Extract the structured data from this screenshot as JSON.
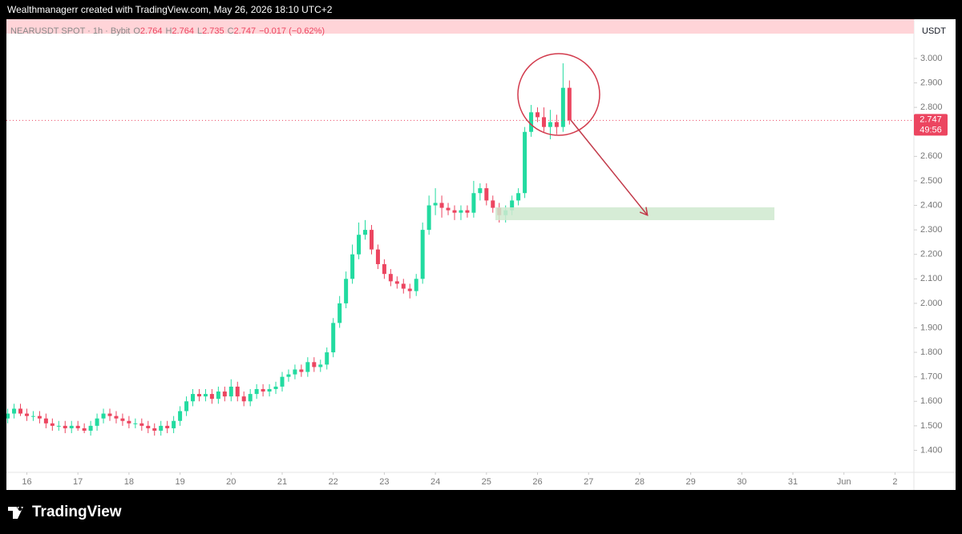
{
  "header": {
    "attribution": "Wealthmanagerr created with TradingView.com, May 26, 2026 18:10 UTC+2"
  },
  "chart_data": {
    "type": "candlestick",
    "currency": "USDT",
    "legend": {
      "symbol": "NEARUSDT SPOT · 1h · Bybit",
      "ohlc": [
        {
          "label": "O",
          "value": "2.764"
        },
        {
          "label": "H",
          "value": "2.764"
        },
        {
          "label": "L",
          "value": "2.735"
        },
        {
          "label": "C",
          "value": "2.747"
        }
      ],
      "change": "−0.017 (−0.62%)"
    },
    "last_price": "2.747",
    "countdown": "49:56",
    "up_color": "#22dba0",
    "down_color": "#ec4560",
    "x": [
      15.625,
      15.75,
      15.875,
      16,
      16.125,
      16.25,
      16.375,
      16.5,
      16.625,
      16.75,
      16.875,
      17,
      17.125,
      17.25,
      17.375,
      17.5,
      17.625,
      17.75,
      17.875,
      18,
      18.125,
      18.25,
      18.375,
      18.5,
      18.625,
      18.75,
      18.875,
      19,
      19.125,
      19.25,
      19.375,
      19.5,
      19.625,
      19.75,
      19.875,
      20,
      20.125,
      20.25,
      20.375,
      20.5,
      20.625,
      20.75,
      20.875,
      21,
      21.125,
      21.25,
      21.375,
      21.5,
      21.625,
      21.75,
      21.875,
      22,
      22.125,
      22.25,
      22.375,
      22.5,
      22.625,
      22.75,
      22.875,
      23,
      23.125,
      23.25,
      23.375,
      23.5,
      23.625,
      23.75,
      23.875,
      24,
      24.125,
      24.25,
      24.375,
      24.5,
      24.625,
      24.75,
      24.875,
      25,
      25.125,
      25.25,
      25.375,
      25.5,
      25.625,
      25.75,
      25.875,
      26,
      26.125,
      26.25,
      26.375,
      26.5,
      26.625
    ],
    "open": [
      1.53,
      1.55,
      1.57,
      1.55,
      1.54,
      1.54,
      1.53,
      1.51,
      1.5,
      1.5,
      1.49,
      1.5,
      1.49,
      1.48,
      1.5,
      1.53,
      1.55,
      1.54,
      1.53,
      1.52,
      1.51,
      1.51,
      1.5,
      1.49,
      1.48,
      1.5,
      1.49,
      1.52,
      1.56,
      1.6,
      1.63,
      1.62,
      1.63,
      1.61,
      1.64,
      1.62,
      1.66,
      1.62,
      1.6,
      1.63,
      1.65,
      1.64,
      1.65,
      1.66,
      1.7,
      1.71,
      1.73,
      1.72,
      1.76,
      1.74,
      1.75,
      1.8,
      1.92,
      2.0,
      2.1,
      2.2,
      2.28,
      2.3,
      2.22,
      2.16,
      2.12,
      2.09,
      2.08,
      2.06,
      2.05,
      2.1,
      2.3,
      2.4,
      2.41,
      2.39,
      2.38,
      2.37,
      2.38,
      2.37,
      2.45,
      2.47,
      2.42,
      2.39,
      2.36,
      2.38,
      2.42,
      2.45,
      2.7,
      2.78,
      2.76,
      2.72,
      2.74,
      2.72,
      2.88
    ],
    "high": [
      1.57,
      1.59,
      1.59,
      1.57,
      1.56,
      1.56,
      1.55,
      1.53,
      1.52,
      1.52,
      1.52,
      1.52,
      1.51,
      1.52,
      1.55,
      1.57,
      1.57,
      1.56,
      1.55,
      1.54,
      1.53,
      1.53,
      1.52,
      1.51,
      1.52,
      1.52,
      1.54,
      1.58,
      1.62,
      1.65,
      1.65,
      1.65,
      1.65,
      1.66,
      1.66,
      1.69,
      1.68,
      1.64,
      1.65,
      1.67,
      1.67,
      1.67,
      1.68,
      1.72,
      1.73,
      1.75,
      1.75,
      1.78,
      1.78,
      1.77,
      1.82,
      1.94,
      2.03,
      2.13,
      2.24,
      2.33,
      2.34,
      2.32,
      2.24,
      2.18,
      2.14,
      2.11,
      2.1,
      2.08,
      2.12,
      2.33,
      2.44,
      2.47,
      2.44,
      2.41,
      2.4,
      2.4,
      2.4,
      2.5,
      2.49,
      2.49,
      2.44,
      2.41,
      2.4,
      2.44,
      2.47,
      2.72,
      2.81,
      2.8,
      2.8,
      2.79,
      2.77,
      2.98,
      2.91
    ],
    "low": [
      1.51,
      1.53,
      1.54,
      1.52,
      1.52,
      1.51,
      1.49,
      1.48,
      1.48,
      1.47,
      1.47,
      1.48,
      1.47,
      1.46,
      1.48,
      1.51,
      1.52,
      1.51,
      1.5,
      1.49,
      1.49,
      1.48,
      1.47,
      1.46,
      1.46,
      1.47,
      1.47,
      1.5,
      1.54,
      1.58,
      1.6,
      1.6,
      1.59,
      1.59,
      1.6,
      1.6,
      1.6,
      1.58,
      1.58,
      1.61,
      1.62,
      1.62,
      1.63,
      1.64,
      1.68,
      1.69,
      1.7,
      1.7,
      1.72,
      1.72,
      1.73,
      1.78,
      1.9,
      1.98,
      2.08,
      2.18,
      2.26,
      2.2,
      2.14,
      2.1,
      2.07,
      2.06,
      2.04,
      2.02,
      2.03,
      2.08,
      2.28,
      2.36,
      2.35,
      2.36,
      2.34,
      2.34,
      2.35,
      2.35,
      2.42,
      2.4,
      2.37,
      2.33,
      2.33,
      2.36,
      2.4,
      2.43,
      2.68,
      2.74,
      2.7,
      2.67,
      2.69,
      2.7,
      2.73
    ],
    "close": [
      1.55,
      1.57,
      1.55,
      1.54,
      1.54,
      1.53,
      1.51,
      1.5,
      1.5,
      1.49,
      1.5,
      1.49,
      1.48,
      1.5,
      1.53,
      1.55,
      1.54,
      1.53,
      1.52,
      1.51,
      1.51,
      1.5,
      1.49,
      1.48,
      1.5,
      1.49,
      1.52,
      1.56,
      1.6,
      1.63,
      1.62,
      1.63,
      1.61,
      1.64,
      1.62,
      1.66,
      1.62,
      1.6,
      1.63,
      1.65,
      1.64,
      1.65,
      1.66,
      1.7,
      1.71,
      1.73,
      1.72,
      1.76,
      1.74,
      1.75,
      1.8,
      1.92,
      2.0,
      2.1,
      2.2,
      2.28,
      2.3,
      2.22,
      2.16,
      2.12,
      2.09,
      2.08,
      2.06,
      2.05,
      2.1,
      2.3,
      2.4,
      2.41,
      2.39,
      2.38,
      2.37,
      2.38,
      2.37,
      2.45,
      2.47,
      2.42,
      2.39,
      2.36,
      2.38,
      2.42,
      2.45,
      2.7,
      2.78,
      2.76,
      2.72,
      2.74,
      2.72,
      2.88,
      2.747
    ],
    "xlim": [
      15.6,
      33.37
    ],
    "xticks": [
      16,
      17,
      18,
      19,
      20,
      21,
      22,
      23,
      24,
      25,
      26,
      27,
      28,
      29,
      30,
      31,
      {
        "value": 32,
        "label": "Jun"
      },
      {
        "value": 33,
        "label": "2"
      }
    ],
    "ylim": [
      1.31,
      3.16
    ],
    "yticks": [
      {
        "value": 1.4,
        "label": "1.400"
      },
      {
        "value": 1.5,
        "label": "1.500"
      },
      {
        "value": 1.6,
        "label": "1.600"
      },
      {
        "value": 1.7,
        "label": "1.700"
      },
      {
        "value": 1.8,
        "label": "1.800"
      },
      {
        "value": 1.9,
        "label": "1.900"
      },
      {
        "value": 2.0,
        "label": "2.000"
      },
      {
        "value": 2.1,
        "label": "2.100"
      },
      {
        "value": 2.2,
        "label": "2.200"
      },
      {
        "value": 2.3,
        "label": "2.300"
      },
      {
        "value": 2.4,
        "label": "2.400"
      },
      {
        "value": 2.5,
        "label": "2.500"
      },
      {
        "value": 2.6,
        "label": "2.600"
      },
      {
        "value": 2.7,
        "label": "2.700"
      },
      {
        "value": 2.8,
        "label": "2.800"
      },
      {
        "value": 2.9,
        "label": "2.900"
      },
      {
        "value": 3.0,
        "label": "3.000"
      }
    ],
    "grid": false
  },
  "footer": {
    "brand": "TradingView"
  }
}
